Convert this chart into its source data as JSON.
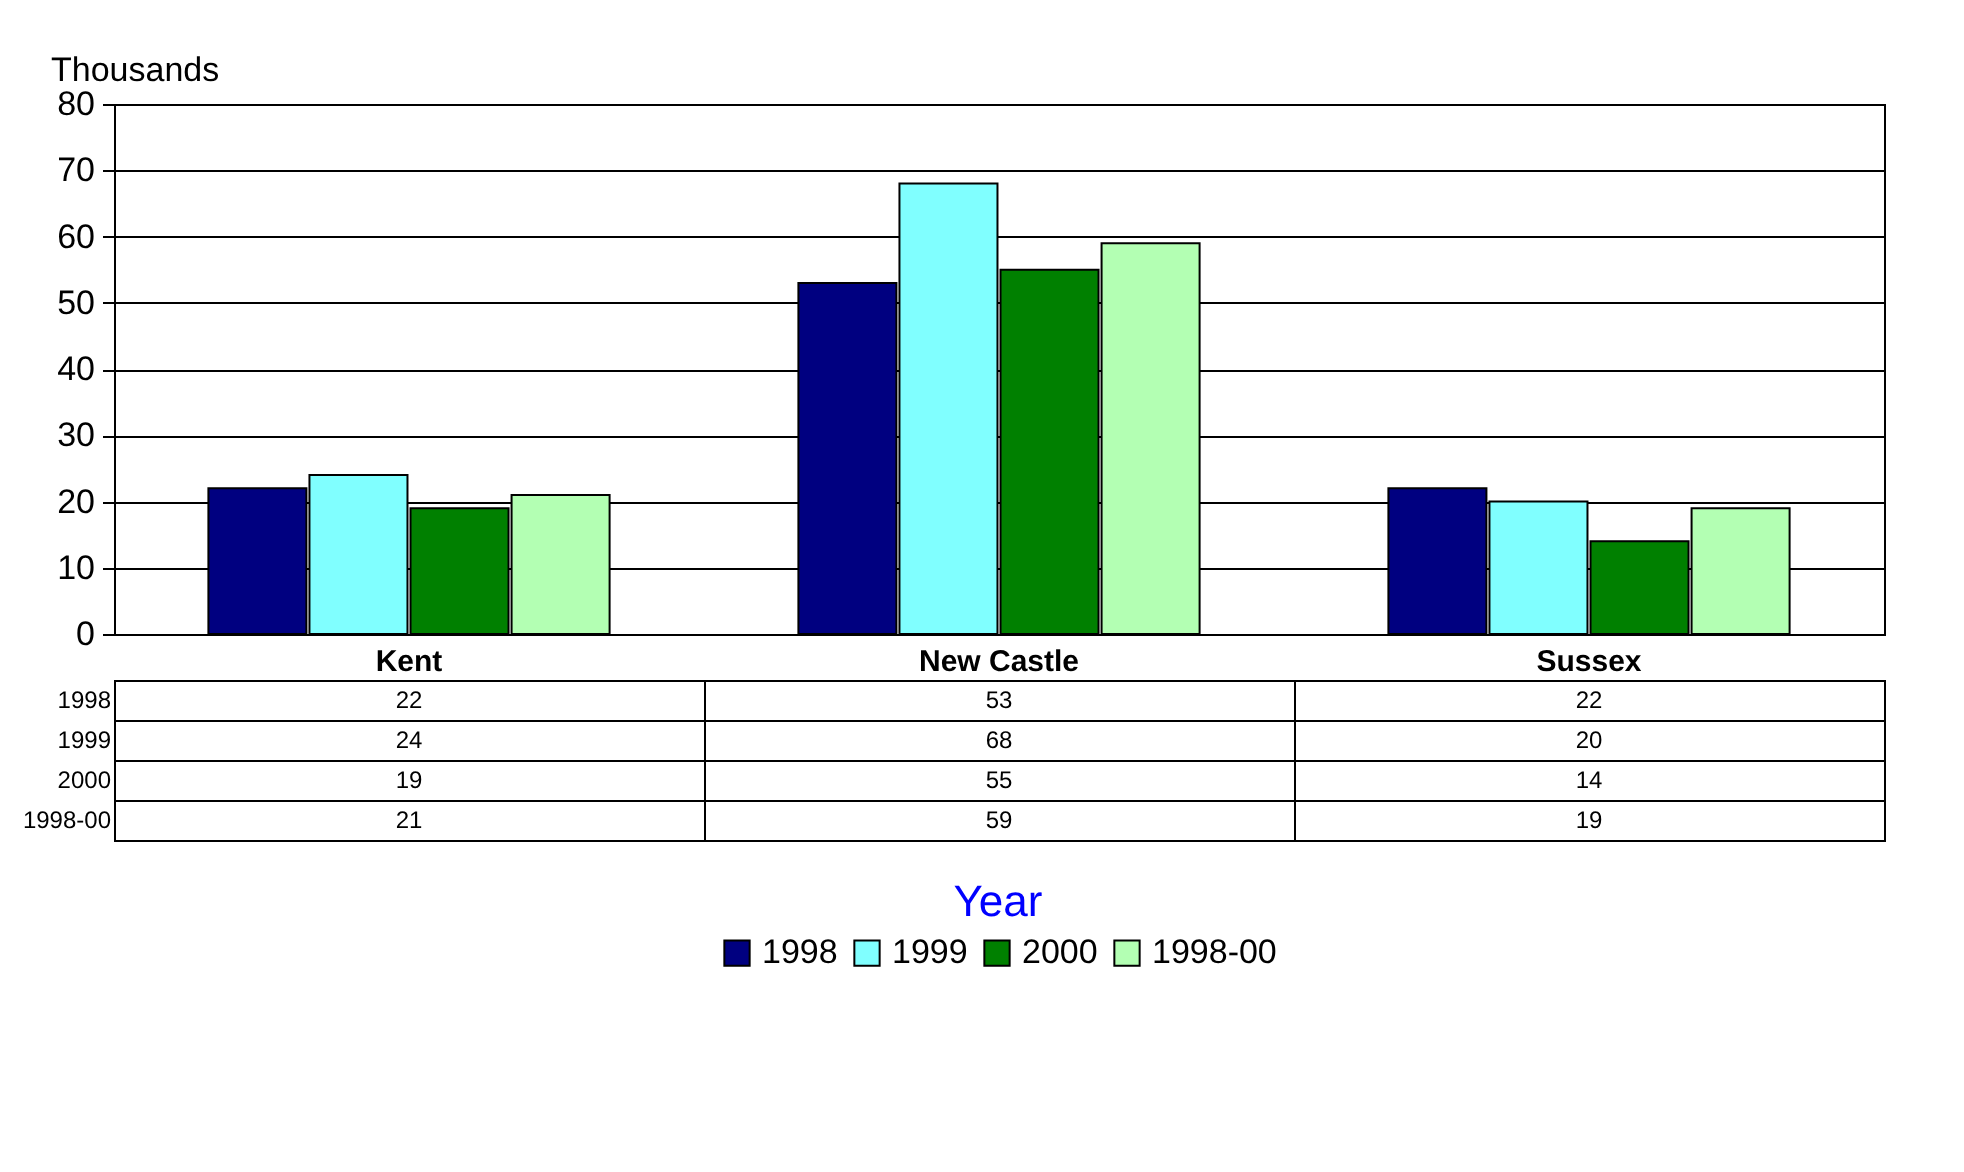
{
  "chart_data": {
    "type": "bar",
    "ylabel": "Thousands",
    "legend_title": "Year",
    "categories": [
      "Kent",
      "New Castle",
      "Sussex"
    ],
    "series": [
      {
        "name": "1998",
        "color": "#000080",
        "values": [
          22,
          53,
          22
        ]
      },
      {
        "name": "1999",
        "color": "#80ffff",
        "values": [
          24,
          68,
          20
        ]
      },
      {
        "name": "2000",
        "color": "#008000",
        "values": [
          19,
          55,
          14
        ]
      },
      {
        "name": "1998-00",
        "color": "#b3ffb3",
        "values": [
          21,
          59,
          19
        ]
      }
    ],
    "ylim": [
      0,
      80
    ],
    "yticks": [
      0,
      10,
      20,
      30,
      40,
      50,
      60,
      70,
      80
    ],
    "grid": "y",
    "legend": "bottom",
    "data_labels": true
  }
}
